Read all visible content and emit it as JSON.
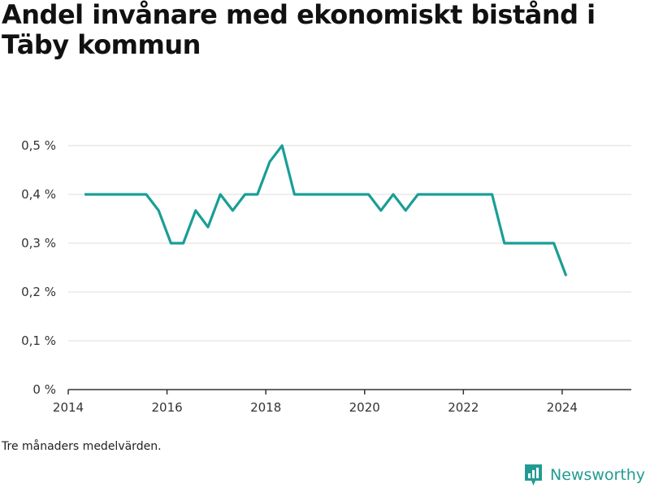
{
  "title": "Andel invånare med ekonomiskt bistånd i Täby kommun",
  "note": "Tre månaders medelvärden.",
  "brand": {
    "name": "Newsworthy",
    "logo_icon": "newsworthy-logo-icon",
    "color": "#239b93"
  },
  "chart_data": {
    "type": "line",
    "title": "Andel invånare med ekonomiskt bistånd i Täby kommun",
    "xlabel": "",
    "ylabel": "",
    "xlim": [
      2014.0,
      2025.4
    ],
    "ylim": [
      0,
      0.5
    ],
    "x_ticks": [
      2014,
      2016,
      2018,
      2020,
      2022,
      2024
    ],
    "x_tick_labels": [
      "2014",
      "2016",
      "2018",
      "2020",
      "2022",
      "2024"
    ],
    "y_ticks": [
      0,
      0.1,
      0.2,
      0.3,
      0.4,
      0.5
    ],
    "y_tick_labels": [
      "0 %",
      "0,1 %",
      "0,2 %",
      "0,3 %",
      "0,4 %",
      "0,5 %"
    ],
    "grid": true,
    "legend": "none",
    "line_color": "#1a9e96",
    "series": [
      {
        "x": [
          2014.33,
          2015.58,
          2015.83,
          2016.08,
          2016.33,
          2016.58,
          2016.83,
          2017.08,
          2017.33,
          2017.58,
          2017.83,
          2018.08,
          2018.33,
          2018.58,
          2020.08,
          2020.33,
          2020.58,
          2020.83,
          2021.08,
          2022.58,
          2022.83,
          2023.83,
          2024.08
        ],
        "values": [
          0.4,
          0.4,
          0.367,
          0.3,
          0.3,
          0.367,
          0.333,
          0.4,
          0.367,
          0.4,
          0.4,
          0.467,
          0.5,
          0.4,
          0.4,
          0.367,
          0.4,
          0.367,
          0.4,
          0.4,
          0.3,
          0.3,
          0.233
        ]
      }
    ]
  }
}
